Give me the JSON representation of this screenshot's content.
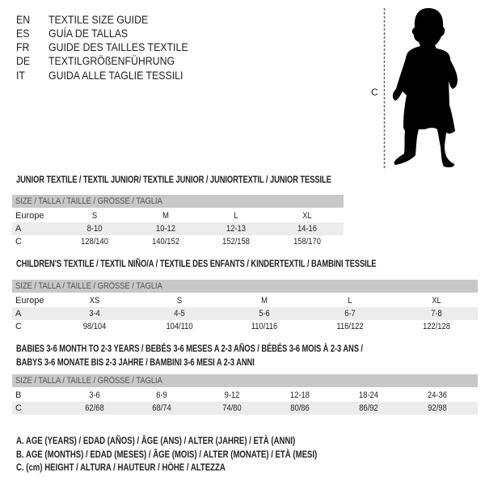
{
  "languages": [
    {
      "code": "EN",
      "text": "TEXTILE SIZE GUIDE"
    },
    {
      "code": "ES",
      "text": "GUÍA DE TALLAS"
    },
    {
      "code": "FR",
      "text": "GUIDE DES TAILLES TEXTILE"
    },
    {
      "code": "DE",
      "text": "TEXTILGRÖßENFÜHRUNG"
    },
    {
      "code": "IT",
      "text": "GUIDA ALLE TAGLIE TESSILI"
    }
  ],
  "figure": {
    "label": "C"
  },
  "tables": [
    {
      "title": "JUNIOR TEXTILE / TEXTIL JUNIOR/ TEXTILE JUNIOR / JUNIORTEXTIL / JUNIOR TESSILE",
      "header": "SIZE / TALLA / TAILLE / GRÖSSE / TAGLIA",
      "rows": [
        {
          "label": "Europe",
          "values": [
            "S",
            "M",
            "L",
            "XL"
          ]
        },
        {
          "label": "A",
          "values": [
            "8-10",
            "10-12",
            "12-13",
            "14-16"
          ]
        },
        {
          "label": "C",
          "values": [
            "128/140",
            "140/152",
            "152/158",
            "158/170"
          ]
        }
      ]
    },
    {
      "title": "CHILDREN'S TEXTILE / TEXTIL NIÑO/A / TEXTILE DES ENFANTS / KINDERTEXTIL / BAMBINI TESSILE",
      "header": "SIZE / TALLA / TAILLE / GRÖSSE / TAGLIA",
      "rows": [
        {
          "label": "Europe",
          "values": [
            "XS",
            "S",
            "M",
            "L",
            "XL"
          ]
        },
        {
          "label": "A",
          "values": [
            "3-4",
            "4-5",
            "5-6",
            "6-7",
            "7-8"
          ]
        },
        {
          "label": "C",
          "values": [
            "98/104",
            "104/110",
            "110/116",
            "116/122",
            "122/128"
          ]
        }
      ]
    },
    {
      "title": "BABIES 3-6 MONTH TO 2-3 YEARS / BEBÉS 3-6 MESES A 2-3 AÑOS / BÉBÉS 3-6 MOIS À 2-3 ANS /",
      "title2": "BABYS 3-6 MONATE BIS 2-3 JAHRE / BAMBINI 3-6 MESI A 2-3 ANNI",
      "header": "SIZE / TALLA / TAILLE / GRÖSSE / TAGLIA",
      "rows": [
        {
          "label": "B",
          "values": [
            "3-6",
            "6-9",
            "9-12",
            "12-18",
            "18-24",
            "24-36"
          ]
        },
        {
          "label": "C",
          "values": [
            "62/68",
            "68/74",
            "74/80",
            "80/86",
            "86/92",
            "92/98"
          ]
        }
      ]
    }
  ],
  "legend": [
    "A. AGE (YEARS) / EDAD (AÑOS) / ÂGE (ANS) / ALTER (JAHRE) / ETÀ (ANNI)",
    "B. AGE (MONTHS) / EDAD (MESES) / ÂGE (MOIS) / ALTER (MONATE) / ETÀ (MESI)",
    "C. (cm) HEIGHT / ALTURA / HAUTEUR / HÖHE / ALTEZZA"
  ]
}
